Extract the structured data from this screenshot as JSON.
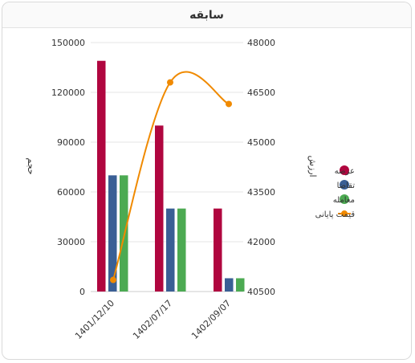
{
  "card": {
    "title": "سابقه"
  },
  "chart_data": {
    "type": "bar",
    "categories": [
      "1401/12/10",
      "1402/07/17",
      "1402/09/07"
    ],
    "series": [
      {
        "name": "عرضه",
        "type": "bar",
        "axis": "left",
        "color": "#b0063f",
        "values": [
          139000,
          100000,
          50000
        ]
      },
      {
        "name": "تقاضا",
        "type": "bar",
        "axis": "left",
        "color": "#3a5f95",
        "values": [
          70000,
          50000,
          8000
        ]
      },
      {
        "name": "معامله",
        "type": "bar",
        "axis": "left",
        "color": "#4caa52",
        "values": [
          70000,
          50000,
          8000
        ]
      },
      {
        "name": "قیمت پایانی",
        "type": "line",
        "axis": "right",
        "color": "#f08a00",
        "values": [
          40850,
          46800,
          46150
        ]
      }
    ],
    "y_left": {
      "label": "حجم",
      "ylim": [
        0,
        150000
      ],
      "ticks": [
        "0",
        "30000",
        "60000",
        "90000",
        "120000",
        "150000"
      ]
    },
    "y_right": {
      "label": "ارزش",
      "ylim": [
        40500,
        48000
      ],
      "ticks": [
        "40500",
        "42000",
        "43500",
        "45000",
        "46500",
        "48000"
      ]
    },
    "grid": true,
    "legend": "right"
  }
}
